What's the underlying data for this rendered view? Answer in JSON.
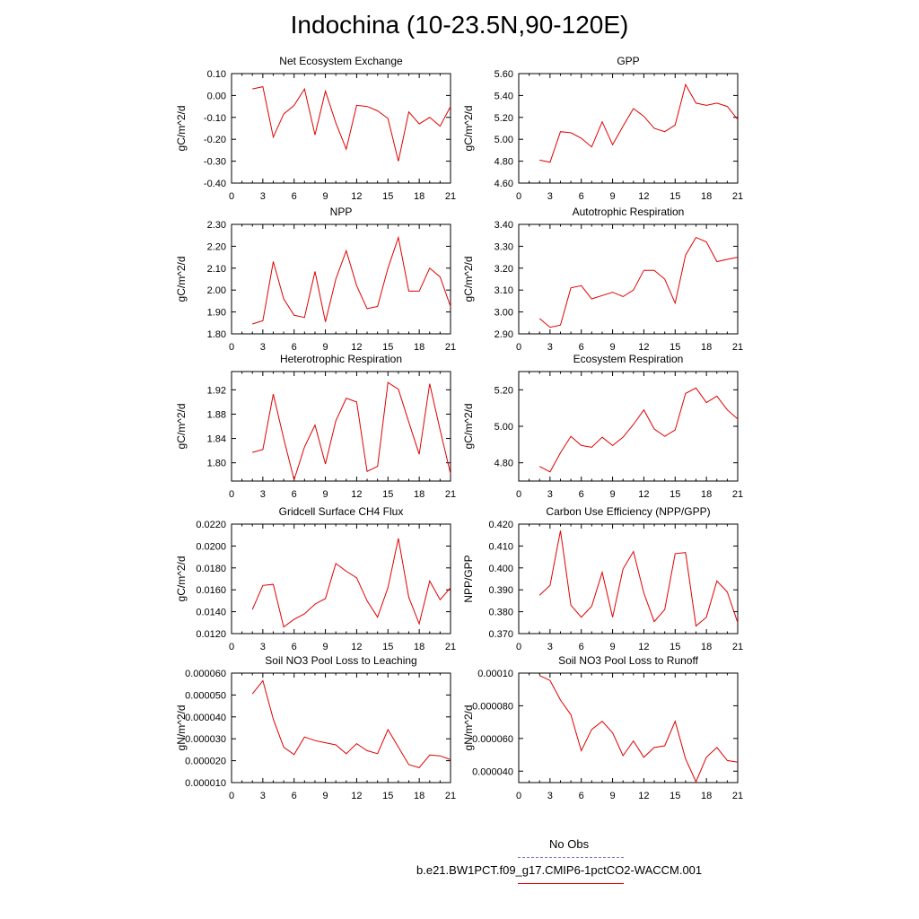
{
  "title": "Indochina (10-23.5N,90-120E)",
  "legend": [
    {
      "label": "No Obs",
      "color": "#7777cc",
      "style": "dashed"
    },
    {
      "label": "b.e21.BW1PCT.f09_g17.CMIP6-1pctCO2-WACCM.001",
      "color": "#e00000",
      "style": "solid"
    }
  ],
  "chart_data": [
    {
      "type": "line",
      "title": "Net Ecosystem Exchange",
      "ylabel": "gC/m^2/d",
      "xlim": [
        0,
        21
      ],
      "ylim": [
        -0.4,
        0.1
      ],
      "xticks": [
        "0",
        "3",
        "6",
        "9",
        "12",
        "15",
        "18",
        "21"
      ],
      "yticks": [
        "0.10",
        "0.00",
        "-0.10",
        "-0.20",
        "-0.30",
        "-0.40"
      ],
      "ytick_values": [
        0.1,
        0,
        -0.1,
        -0.2,
        -0.3,
        -0.4
      ],
      "series": [
        {
          "color": "#e00000",
          "x": [
            2,
            3,
            4,
            5,
            6,
            7,
            8,
            9,
            10,
            11,
            12,
            13,
            14,
            15,
            16,
            17,
            18,
            19,
            20,
            21
          ],
          "y": [
            0.03,
            0.04,
            -0.19,
            -0.085,
            -0.045,
            0.03,
            -0.18,
            0.02,
            -0.125,
            -0.245,
            -0.045,
            -0.05,
            -0.07,
            -0.105,
            -0.3,
            -0.075,
            -0.13,
            -0.1,
            -0.14,
            -0.05
          ]
        }
      ]
    },
    {
      "type": "line",
      "title": "GPP",
      "ylabel": "gC/m^2/d",
      "xlim": [
        0,
        21
      ],
      "ylim": [
        4.6,
        5.6
      ],
      "xticks": [
        "0",
        "3",
        "6",
        "9",
        "12",
        "15",
        "18",
        "21"
      ],
      "yticks": [
        "5.60",
        "5.40",
        "5.20",
        "5.00",
        "4.80",
        "4.60"
      ],
      "ytick_values": [
        5.6,
        5.4,
        5.2,
        5.0,
        4.8,
        4.6
      ],
      "series": [
        {
          "color": "#e00000",
          "x": [
            2,
            3,
            4,
            5,
            6,
            7,
            8,
            9,
            10,
            11,
            12,
            13,
            14,
            15,
            16,
            17,
            18,
            19,
            20,
            21
          ],
          "y": [
            4.81,
            4.79,
            5.07,
            5.06,
            5.01,
            4.93,
            5.16,
            4.95,
            5.12,
            5.28,
            5.21,
            5.1,
            5.07,
            5.13,
            5.5,
            5.33,
            5.31,
            5.33,
            5.3,
            5.18
          ]
        }
      ]
    },
    {
      "type": "line",
      "title": "NPP",
      "ylabel": "gC/m^2/d",
      "xlim": [
        0,
        21
      ],
      "ylim": [
        1.8,
        2.3
      ],
      "xticks": [
        "0",
        "3",
        "6",
        "9",
        "12",
        "15",
        "18",
        "21"
      ],
      "yticks": [
        "2.30",
        "2.20",
        "2.10",
        "2.00",
        "1.90",
        "1.80"
      ],
      "ytick_values": [
        2.3,
        2.2,
        2.1,
        2.0,
        1.9,
        1.8
      ],
      "series": [
        {
          "color": "#e00000",
          "x": [
            2,
            3,
            4,
            5,
            6,
            7,
            8,
            9,
            10,
            11,
            12,
            13,
            14,
            15,
            16,
            17,
            18,
            19,
            20,
            21
          ],
          "y": [
            1.845,
            1.86,
            2.13,
            1.96,
            1.885,
            1.875,
            2.085,
            1.855,
            2.05,
            2.18,
            2.02,
            1.915,
            1.925,
            2.1,
            2.24,
            1.995,
            1.995,
            2.1,
            2.06,
            1.925
          ]
        }
      ]
    },
    {
      "type": "line",
      "title": "Autotrophic Respiration",
      "ylabel": "gC/m^2/d",
      "xlim": [
        0,
        21
      ],
      "ylim": [
        2.9,
        3.4
      ],
      "xticks": [
        "0",
        "3",
        "6",
        "9",
        "12",
        "15",
        "18",
        "21"
      ],
      "yticks": [
        "3.40",
        "3.30",
        "3.20",
        "3.10",
        "3.00",
        "2.90"
      ],
      "ytick_values": [
        3.4,
        3.3,
        3.2,
        3.1,
        3.0,
        2.9
      ],
      "series": [
        {
          "color": "#e00000",
          "x": [
            2,
            3,
            4,
            5,
            6,
            7,
            8,
            9,
            10,
            11,
            12,
            13,
            14,
            15,
            16,
            17,
            18,
            19,
            20,
            21
          ],
          "y": [
            2.97,
            2.93,
            2.94,
            3.11,
            3.12,
            3.06,
            3.075,
            3.09,
            3.07,
            3.1,
            3.19,
            3.19,
            3.15,
            3.04,
            3.26,
            3.34,
            3.32,
            3.23,
            3.24,
            3.25
          ]
        }
      ]
    },
    {
      "type": "line",
      "title": "Heterotrophic Respiration",
      "ylabel": "gC/m^2/d",
      "xlim": [
        0,
        21
      ],
      "ylim": [
        1.77,
        1.95
      ],
      "xticks": [
        "0",
        "3",
        "6",
        "9",
        "12",
        "15",
        "18",
        "21"
      ],
      "yticks": [
        "1.92",
        "1.88",
        "1.84",
        "1.80"
      ],
      "ytick_values": [
        1.92,
        1.88,
        1.84,
        1.8
      ],
      "series": [
        {
          "color": "#e00000",
          "x": [
            2,
            3,
            4,
            5,
            6,
            7,
            8,
            9,
            10,
            11,
            12,
            13,
            14,
            15,
            16,
            17,
            18,
            19,
            20,
            21
          ],
          "y": [
            1.817,
            1.822,
            1.913,
            1.84,
            1.772,
            1.826,
            1.862,
            1.798,
            1.869,
            1.906,
            1.9,
            1.786,
            1.794,
            1.932,
            1.921,
            1.867,
            1.814,
            1.93,
            1.854,
            1.782
          ]
        }
      ]
    },
    {
      "type": "line",
      "title": "Ecosystem Respiration",
      "ylabel": "gC/m^2/d",
      "xlim": [
        0,
        21
      ],
      "ylim": [
        4.7,
        5.3
      ],
      "xticks": [
        "0",
        "3",
        "6",
        "9",
        "12",
        "15",
        "18",
        "21"
      ],
      "yticks": [
        "5.20",
        "5.00",
        "4.80"
      ],
      "ytick_values": [
        5.2,
        5.0,
        4.8
      ],
      "series": [
        {
          "color": "#e00000",
          "x": [
            2,
            3,
            4,
            5,
            6,
            7,
            8,
            9,
            10,
            11,
            12,
            13,
            14,
            15,
            16,
            17,
            18,
            19,
            20,
            21
          ],
          "y": [
            4.78,
            4.75,
            4.855,
            4.945,
            4.895,
            4.885,
            4.94,
            4.895,
            4.94,
            5.01,
            5.09,
            4.985,
            4.945,
            4.98,
            5.18,
            5.21,
            5.13,
            5.165,
            5.09,
            5.04
          ]
        }
      ]
    },
    {
      "type": "line",
      "title": "Gridcell Surface CH4 Flux",
      "ylabel": "gC/m^2/d",
      "xlim": [
        0,
        21
      ],
      "ylim": [
        0.012,
        0.022
      ],
      "xticks": [
        "0",
        "3",
        "6",
        "9",
        "12",
        "15",
        "18",
        "21"
      ],
      "yticks": [
        "0.0220",
        "0.0200",
        "0.0180",
        "0.0160",
        "0.0140",
        "0.0120"
      ],
      "ytick_values": [
        0.022,
        0.02,
        0.018,
        0.016,
        0.014,
        0.012
      ],
      "series": [
        {
          "color": "#e00000",
          "x": [
            2,
            3,
            4,
            5,
            6,
            7,
            8,
            9,
            10,
            11,
            12,
            13,
            14,
            15,
            16,
            17,
            18,
            19,
            20,
            21
          ],
          "y": [
            0.0142,
            0.0164,
            0.0165,
            0.0126,
            0.0133,
            0.0138,
            0.0147,
            0.0152,
            0.0184,
            0.0177,
            0.0171,
            0.015,
            0.0135,
            0.0162,
            0.0207,
            0.0153,
            0.0129,
            0.0168,
            0.0151,
            0.0162
          ]
        }
      ]
    },
    {
      "type": "line",
      "title": "Carbon Use Efficiency (NPP/GPP)",
      "ylabel": "NPP/GPP",
      "xlim": [
        0,
        21
      ],
      "ylim": [
        0.37,
        0.42
      ],
      "xticks": [
        "0",
        "3",
        "6",
        "9",
        "12",
        "15",
        "18",
        "21"
      ],
      "yticks": [
        "0.420",
        "0.410",
        "0.400",
        "0.390",
        "0.380",
        "0.370"
      ],
      "ytick_values": [
        0.42,
        0.41,
        0.4,
        0.39,
        0.38,
        0.37
      ],
      "series": [
        {
          "color": "#e00000",
          "x": [
            2,
            3,
            4,
            5,
            6,
            7,
            8,
            9,
            10,
            11,
            12,
            13,
            14,
            15,
            16,
            17,
            18,
            19,
            20,
            21
          ],
          "y": [
            0.3875,
            0.392,
            0.417,
            0.383,
            0.3775,
            0.3825,
            0.398,
            0.3775,
            0.3995,
            0.4075,
            0.3885,
            0.3755,
            0.381,
            0.4065,
            0.407,
            0.3735,
            0.3775,
            0.394,
            0.389,
            0.375
          ]
        }
      ]
    },
    {
      "type": "line",
      "title": "Soil NO3 Pool Loss to Leaching",
      "ylabel": "gN/m^2/d",
      "xlim": [
        0,
        21
      ],
      "ylim": [
        1e-05,
        6e-05
      ],
      "xticks": [
        "0",
        "3",
        "6",
        "9",
        "12",
        "15",
        "18",
        "21"
      ],
      "yticks": [
        "0.000060",
        "0.000050",
        "0.000040",
        "0.000030",
        "0.000020",
        "0.000010"
      ],
      "ytick_values": [
        6e-05,
        5e-05,
        4e-05,
        3e-05,
        2e-05,
        1e-05
      ],
      "series": [
        {
          "color": "#e00000",
          "x": [
            2,
            3,
            4,
            5,
            6,
            7,
            8,
            9,
            10,
            11,
            12,
            13,
            14,
            15,
            16,
            17,
            18,
            19,
            20,
            21
          ],
          "y": [
            5.05e-05,
            5.65e-05,
            3.9e-05,
            2.62e-05,
            2.28e-05,
            3.08e-05,
            2.92e-05,
            2.82e-05,
            2.72e-05,
            2.32e-05,
            2.78e-05,
            2.46e-05,
            2.32e-05,
            3.42e-05,
            2.62e-05,
            1.82e-05,
            1.68e-05,
            2.26e-05,
            2.22e-05,
            2.05e-05
          ]
        }
      ]
    },
    {
      "type": "line",
      "title": "Soil NO3 Pool Loss to Runoff",
      "ylabel": "gN/m^2/d",
      "xlim": [
        0,
        21
      ],
      "ylim": [
        3.3e-05,
        0.0001
      ],
      "xticks": [
        "0",
        "3",
        "6",
        "9",
        "12",
        "15",
        "18",
        "21"
      ],
      "yticks": [
        "0.00010",
        "0.000080",
        "0.000060",
        "0.000040"
      ],
      "ytick_values": [
        0.0001,
        8e-05,
        6e-05,
        4e-05
      ],
      "series": [
        {
          "color": "#e00000",
          "x": [
            2,
            3,
            4,
            5,
            6,
            7,
            8,
            9,
            10,
            11,
            12,
            13,
            14,
            15,
            16,
            17,
            18,
            19,
            20,
            21
          ],
          "y": [
            9.85e-05,
            9.55e-05,
            8.35e-05,
            7.45e-05,
            5.25e-05,
            6.55e-05,
            7.05e-05,
            6.35e-05,
            4.95e-05,
            5.85e-05,
            4.85e-05,
            5.45e-05,
            5.55e-05,
            7.05e-05,
            4.75e-05,
            3.35e-05,
            4.85e-05,
            5.45e-05,
            4.65e-05,
            4.55e-05
          ]
        }
      ]
    }
  ]
}
